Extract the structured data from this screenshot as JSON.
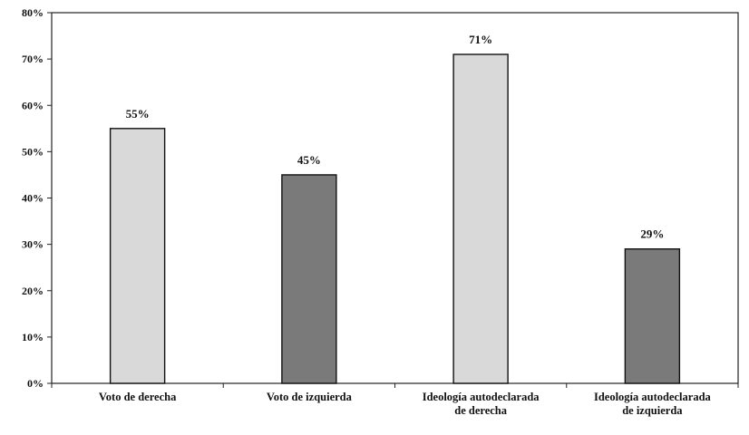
{
  "chart_data": {
    "type": "bar",
    "categories": [
      [
        "Voto de derecha"
      ],
      [
        "Voto de izquierda"
      ],
      [
        "Ideología autodeclarada",
        "de derecha"
      ],
      [
        "Ideología autodeclarada",
        "de izquierda"
      ]
    ],
    "values": [
      55,
      45,
      71,
      29
    ],
    "data_labels": [
      "55%",
      "45%",
      "71%",
      "29%"
    ],
    "bar_colors": [
      "#d9d9d9",
      "#7a7a7a",
      "#d9d9d9",
      "#7a7a7a"
    ],
    "bar_stroke": "#111111",
    "ylim": [
      0,
      80
    ],
    "yticks": [
      {
        "value": 0,
        "label": "0%"
      },
      {
        "value": 10,
        "label": "10%"
      },
      {
        "value": 20,
        "label": "20%"
      },
      {
        "value": 30,
        "label": "30%"
      },
      {
        "value": 40,
        "label": "40%"
      },
      {
        "value": 50,
        "label": "50%"
      },
      {
        "value": 60,
        "label": "60%"
      },
      {
        "value": 70,
        "label": "70%"
      },
      {
        "value": 80,
        "label": "80%"
      }
    ],
    "title": "",
    "xlabel": "",
    "ylabel": "",
    "grid": false,
    "legend": null
  }
}
